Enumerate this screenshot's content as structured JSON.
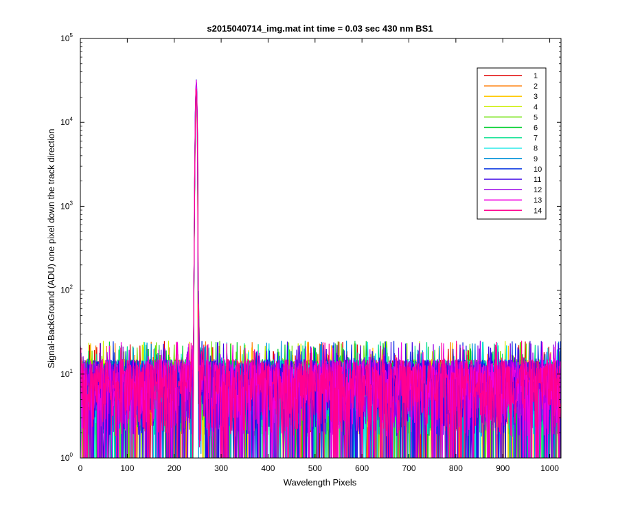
{
  "chart_data": {
    "type": "line",
    "title": "s2015040714_img.mat int time = 0.03 sec  430 nm BS1",
    "xlabel": "Wavelength Pixels",
    "ylabel": "Signal-BackGround (ADU) one pixel down the track direction",
    "xlim": [
      0,
      1024
    ],
    "ylim": [
      1,
      100000
    ],
    "yscale": "log",
    "grid": false,
    "legend_position": "top-right",
    "x_ticks": [
      0,
      100,
      200,
      300,
      400,
      500,
      600,
      700,
      800,
      900,
      1000
    ],
    "x_tick_labels": [
      "0",
      "100",
      "200",
      "300",
      "400",
      "500",
      "600",
      "700",
      "800",
      "900",
      "1000"
    ],
    "y_ticks": [
      {
        "base": "10",
        "exp": "0",
        "value": 1
      },
      {
        "base": "10",
        "exp": "1",
        "value": 10
      },
      {
        "base": "10",
        "exp": "2",
        "value": 100
      },
      {
        "base": "10",
        "exp": "3",
        "value": 1000
      },
      {
        "base": "10",
        "exp": "4",
        "value": 10000
      },
      {
        "base": "10",
        "exp": "5",
        "value": 100000
      }
    ],
    "noise_description": {
      "min": 1,
      "typical_low": 3,
      "typical_high": 15,
      "max": 25
    },
    "peak": {
      "x_start": 241,
      "x_center": 247,
      "x_end": 253,
      "max_value": 31000
    },
    "series": [
      {
        "name": "1",
        "color": "#e00000",
        "peak_max": 26000
      },
      {
        "name": "2",
        "color": "#ff7a00",
        "peak_max": 27000
      },
      {
        "name": "3",
        "color": "#ffc800",
        "peak_max": 24000
      },
      {
        "name": "4",
        "color": "#ccee00",
        "peak_max": 25000
      },
      {
        "name": "5",
        "color": "#6ae000",
        "peak_max": 22000
      },
      {
        "name": "6",
        "color": "#00d030",
        "peak_max": 23000
      },
      {
        "name": "7",
        "color": "#00e08c",
        "peak_max": 24000
      },
      {
        "name": "8",
        "color": "#00e6e6",
        "peak_max": 25000
      },
      {
        "name": "9",
        "color": "#0090d8",
        "peak_max": 28000
      },
      {
        "name": "10",
        "color": "#0030e0",
        "peak_max": 31000
      },
      {
        "name": "11",
        "color": "#3a00e6",
        "peak_max": 30000
      },
      {
        "name": "12",
        "color": "#9a00e6",
        "peak_max": 29000
      },
      {
        "name": "13",
        "color": "#f000e0",
        "peak_max": 28000
      },
      {
        "name": "14",
        "color": "#ff0090",
        "peak_max": 27000
      }
    ]
  }
}
